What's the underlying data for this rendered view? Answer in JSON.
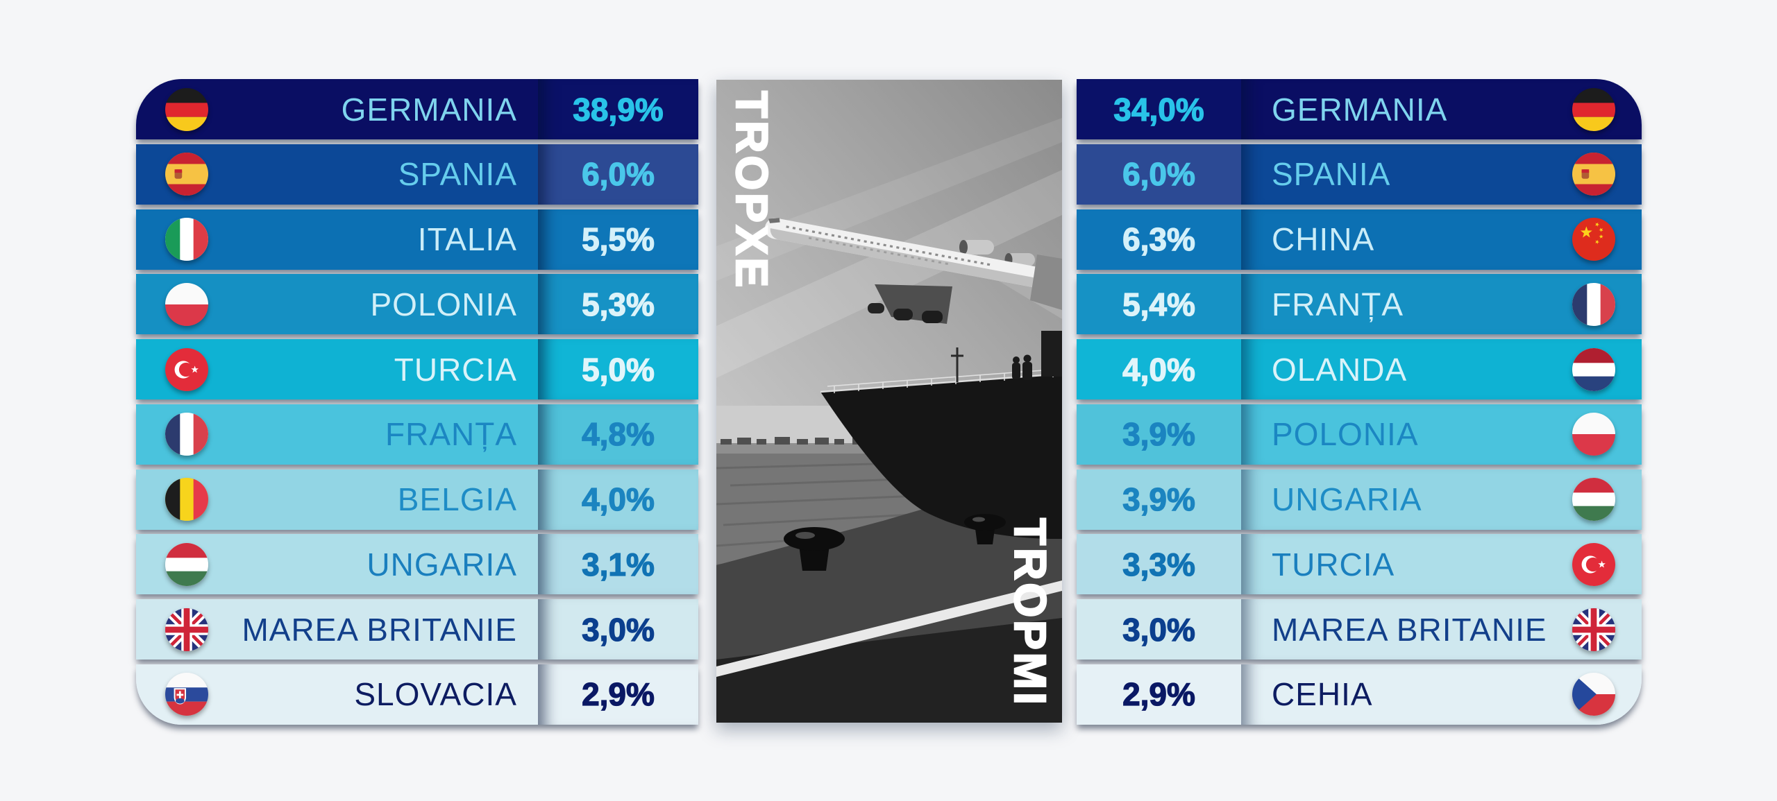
{
  "export_panel": {
    "label": "EXPORT",
    "rows": [
      {
        "country": "GERMANIA",
        "value": "38,9%",
        "flag": "flag-germany"
      },
      {
        "country": "SPANIA",
        "value": "6,0%",
        "flag": "flag-spain"
      },
      {
        "country": "ITALIA",
        "value": "5,5%",
        "flag": "flag-italy"
      },
      {
        "country": "POLONIA",
        "value": "5,3%",
        "flag": "flag-poland"
      },
      {
        "country": "TURCIA",
        "value": "5,0%",
        "flag": "flag-turkey"
      },
      {
        "country": "FRANȚA",
        "value": "4,8%",
        "flag": "flag-france"
      },
      {
        "country": "BELGIA",
        "value": "4,0%",
        "flag": "flag-belgium"
      },
      {
        "country": "UNGARIA",
        "value": "3,1%",
        "flag": "flag-hungary"
      },
      {
        "country": "MAREA BRITANIE",
        "value": "3,0%",
        "flag": "flag-uk"
      },
      {
        "country": "SLOVACIA",
        "value": "2,9%",
        "flag": "flag-slovakia"
      }
    ]
  },
  "import_panel": {
    "label": "IMPORT",
    "rows": [
      {
        "country": "GERMANIA",
        "value": "34,0%",
        "flag": "flag-germany"
      },
      {
        "country": "SPANIA",
        "value": "6,0%",
        "flag": "flag-spain"
      },
      {
        "country": "CHINA",
        "value": "6,3%",
        "flag": "flag-china"
      },
      {
        "country": "FRANȚA",
        "value": "5,4%",
        "flag": "flag-france"
      },
      {
        "country": "OLANDA",
        "value": "4,0%",
        "flag": "flag-netherlands"
      },
      {
        "country": "POLONIA",
        "value": "3,9%",
        "flag": "flag-poland"
      },
      {
        "country": "UNGARIA",
        "value": "3,9%",
        "flag": "flag-hungary"
      },
      {
        "country": "TURCIA",
        "value": "3,3%",
        "flag": "flag-turkey"
      },
      {
        "country": "MAREA BRITANIE",
        "value": "3,0%",
        "flag": "flag-uk"
      },
      {
        "country": "CEHIA",
        "value": "2,9%",
        "flag": "flag-czechia"
      }
    ]
  },
  "style": {
    "page_bg": "#f5f6f8",
    "label_color": "#ffffff",
    "name_bg": [
      "#0a0e63",
      "#0c4897",
      "#0c70b3",
      "#1590c3",
      "#0fb2d3",
      "#4ac3dd",
      "#92d5e4",
      "#addee9",
      "#cfe8ef",
      "#e3f0f5"
    ],
    "pct_bg": [
      "#0a1168",
      "#2c4a94",
      "#0e76b8",
      "#1692c5",
      "#10b5d6",
      "#50c2da",
      "#97d6e4",
      "#b2dde9",
      "#d2e9ef",
      "#e6f1f6"
    ],
    "name_text": [
      "#7fd4ee",
      "#66cdec",
      "#c9ecf8",
      "#d2eff8",
      "#d9f3f9",
      "#1b86c2",
      "#1e8cc6",
      "#1a7fbe",
      "#123f8a",
      "#0d1c61"
    ],
    "pct_text": [
      "#29c3e8",
      "#4ac7ea",
      "#d4f0f9",
      "#dcf3f9",
      "#e0f5fa",
      "#1b84c0",
      "#1b84c0",
      "#1173b4",
      "#0b3f8e",
      "#0a1864"
    ]
  },
  "chart_data": [
    {
      "type": "table",
      "title": "EXPORT",
      "categories": [
        "Germania",
        "Spania",
        "Italia",
        "Polonia",
        "Turcia",
        "Franța",
        "Belgia",
        "Ungaria",
        "Marea Britanie",
        "Slovacia"
      ],
      "values": [
        38.9,
        6.0,
        5.5,
        5.3,
        5.0,
        4.8,
        4.0,
        3.1,
        3.0,
        2.9
      ],
      "unit": "%"
    },
    {
      "type": "table",
      "title": "IMPORT",
      "categories": [
        "Germania",
        "Spania",
        "China",
        "Franța",
        "Olanda",
        "Polonia",
        "Ungaria",
        "Turcia",
        "Marea Britanie",
        "Cehia"
      ],
      "values": [
        34.0,
        6.0,
        6.3,
        5.4,
        4.0,
        3.9,
        3.9,
        3.3,
        3.0,
        2.9
      ],
      "unit": "%"
    }
  ]
}
